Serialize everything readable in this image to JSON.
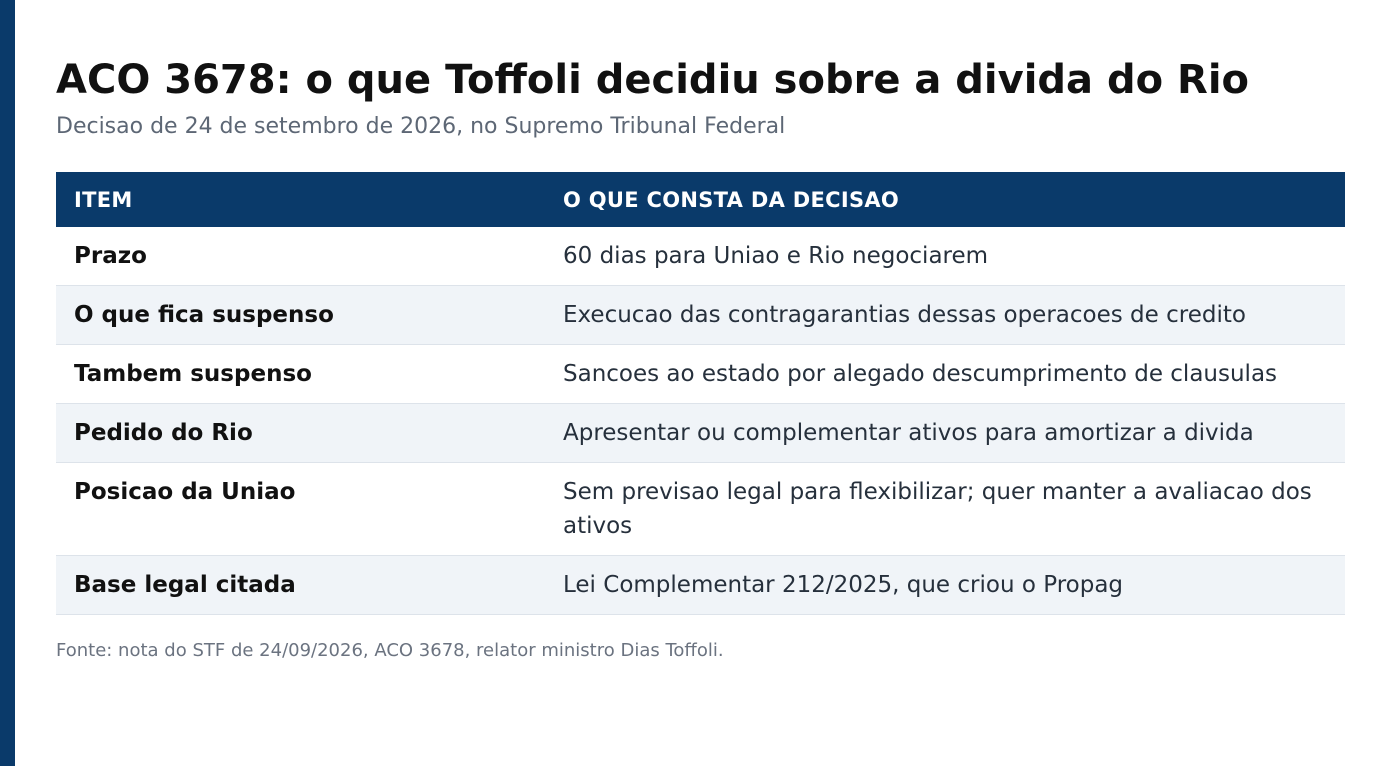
{
  "title": "ACO 3678: o que Toffoli decidiu sobre a divida do Rio",
  "subtitle": "Decisao de 24 de setembro de 2026, no Supremo Tribunal Federal",
  "table": {
    "headers": [
      "ITEM",
      "O QUE CONSTA DA DECISAO"
    ],
    "rows": [
      [
        "Prazo",
        "60 dias para Uniao e Rio negociarem"
      ],
      [
        "O que fica suspenso",
        "Execucao das contragarantias dessas operacoes de credito"
      ],
      [
        "Tambem suspenso",
        "Sancoes ao estado por alegado descumprimento de clausulas"
      ],
      [
        "Pedido do Rio",
        "Apresentar ou complementar ativos para amortizar a divida"
      ],
      [
        "Posicao da Uniao",
        "Sem previsao legal para flexibilizar; quer manter a avaliacao dos ativos"
      ],
      [
        "Base legal citada",
        "Lei Complementar 212/2025, que criou o Propag"
      ]
    ]
  },
  "source": "Fonte: nota do STF de 24/09/2026, ACO 3678, relator ministro Dias Toffoli.",
  "colors": {
    "accent": "#0a3a6a",
    "stripe": "#f0f4f8",
    "subtitle": "#5d6775"
  }
}
